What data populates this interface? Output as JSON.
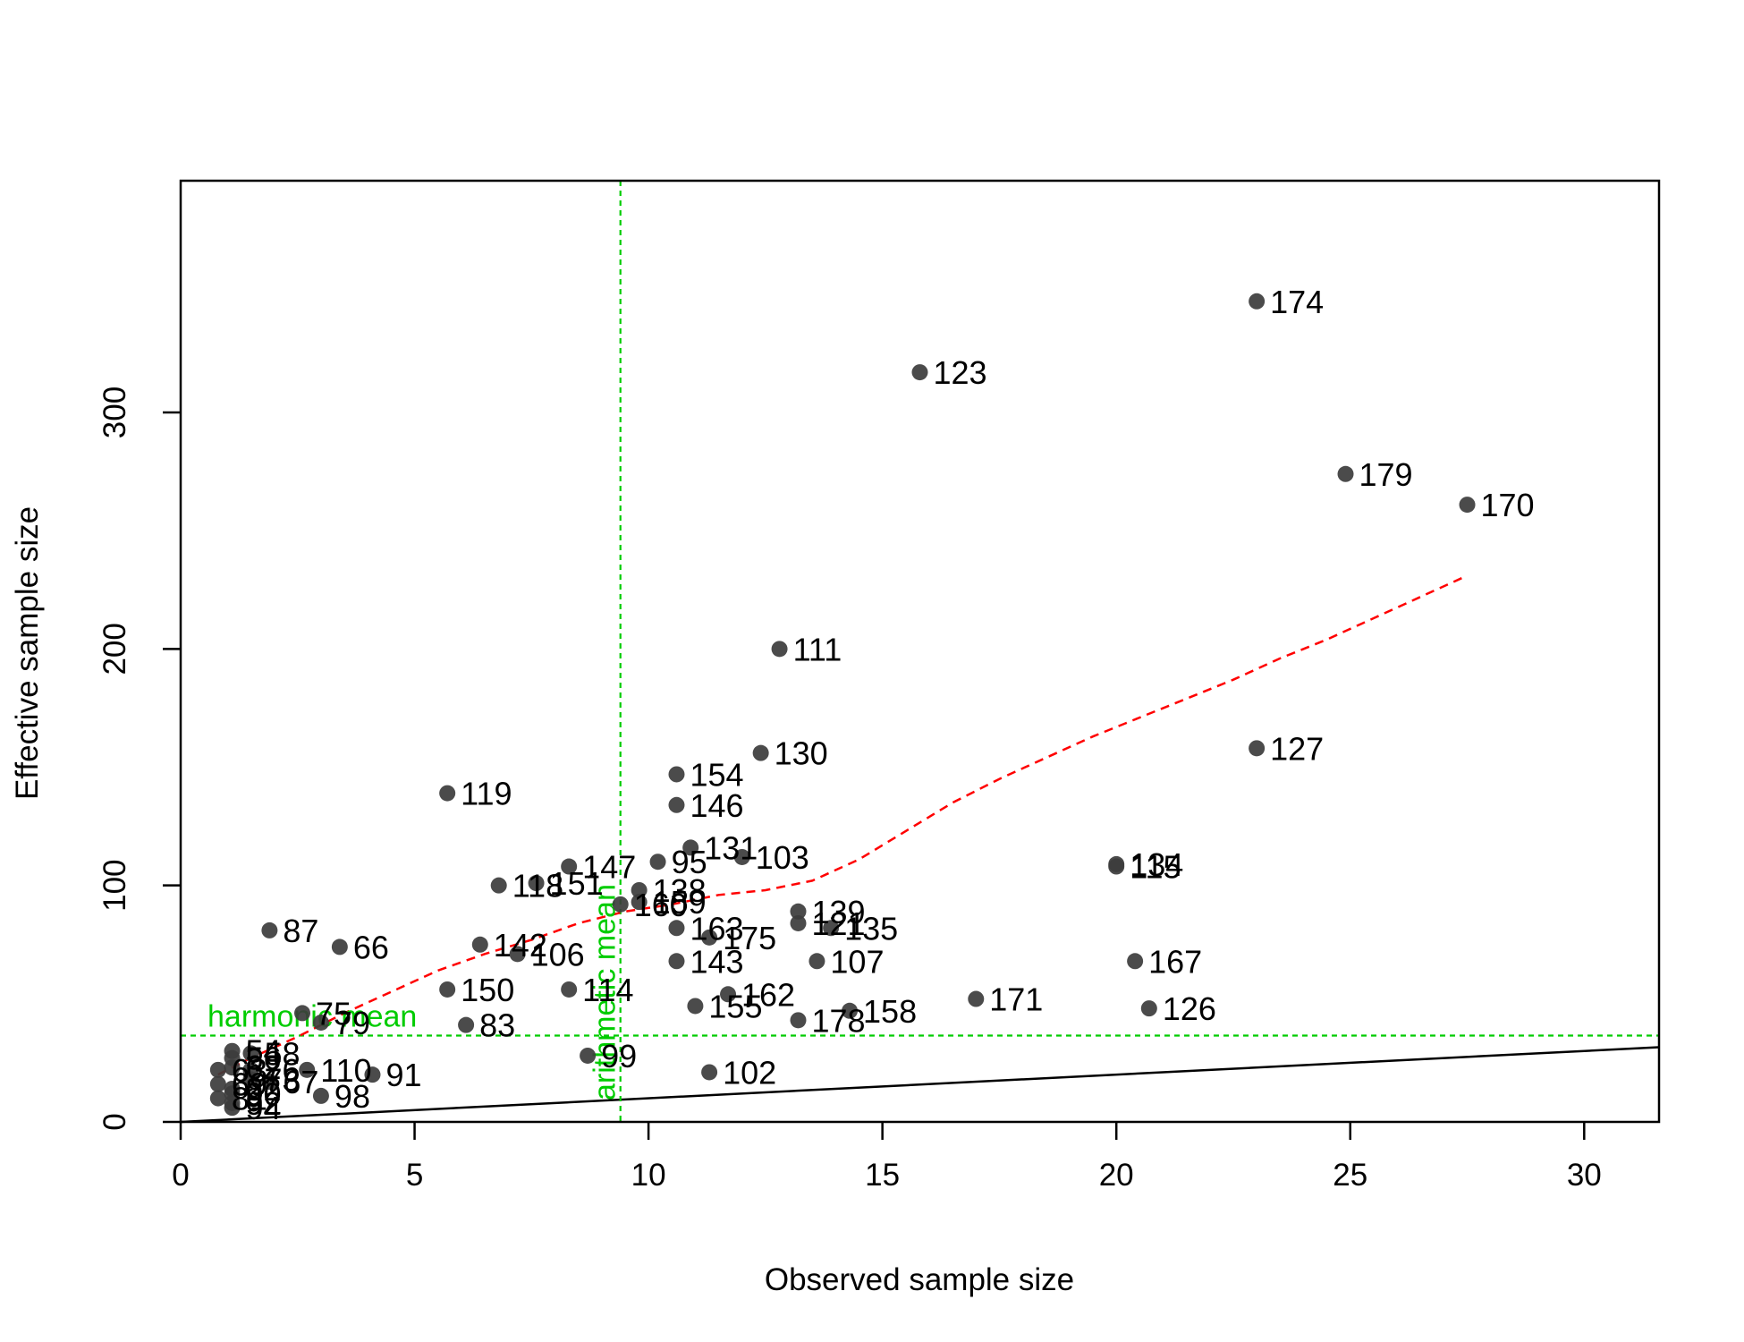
{
  "chart_data": {
    "type": "scatter",
    "title": "",
    "xlabel": "Observed sample size",
    "ylabel": "Effective sample size",
    "xlim": [
      0,
      31.6
    ],
    "ylim": [
      0,
      398
    ],
    "xticks": [
      "0",
      "5",
      "10",
      "15",
      "20",
      "25",
      "30"
    ],
    "yticks": [
      "0",
      "100",
      "200",
      "300"
    ],
    "grid": false,
    "points": [
      {
        "label": "174",
        "x": 23.0,
        "y": 347
      },
      {
        "label": "123",
        "x": 15.8,
        "y": 317
      },
      {
        "label": "179",
        "x": 24.9,
        "y": 274
      },
      {
        "label": "170",
        "x": 27.5,
        "y": 261
      },
      {
        "label": "111",
        "x": 12.8,
        "y": 200
      },
      {
        "label": "127",
        "x": 23.0,
        "y": 158
      },
      {
        "label": "130",
        "x": 12.4,
        "y": 156
      },
      {
        "label": "154",
        "x": 10.6,
        "y": 147
      },
      {
        "label": "119",
        "x": 5.7,
        "y": 139
      },
      {
        "label": "146",
        "x": 10.6,
        "y": 134
      },
      {
        "label": "131",
        "x": 10.9,
        "y": 116
      },
      {
        "label": "103",
        "x": 12.0,
        "y": 112
      },
      {
        "label": "95",
        "x": 10.2,
        "y": 110
      },
      {
        "label": "134",
        "x": 20.0,
        "y": 109
      },
      {
        "label": "115",
        "x": 20.0,
        "y": 108
      },
      {
        "label": "147",
        "x": 8.3,
        "y": 108
      },
      {
        "label": "151",
        "x": 7.6,
        "y": 101
      },
      {
        "label": "118",
        "x": 6.8,
        "y": 100
      },
      {
        "label": "138",
        "x": 9.8,
        "y": 98
      },
      {
        "label": "159",
        "x": 9.8,
        "y": 93
      },
      {
        "label": "160",
        "x": 9.4,
        "y": 92
      },
      {
        "label": "139",
        "x": 13.2,
        "y": 89
      },
      {
        "label": "121",
        "x": 13.2,
        "y": 84
      },
      {
        "label": "135",
        "x": 13.9,
        "y": 82
      },
      {
        "label": "163",
        "x": 10.6,
        "y": 82
      },
      {
        "label": "87",
        "x": 1.9,
        "y": 81
      },
      {
        "label": "175",
        "x": 11.3,
        "y": 78
      },
      {
        "label": "142",
        "x": 6.4,
        "y": 75
      },
      {
        "label": "66",
        "x": 3.4,
        "y": 74
      },
      {
        "label": "106",
        "x": 7.2,
        "y": 71
      },
      {
        "label": "143",
        "x": 10.6,
        "y": 68
      },
      {
        "label": "107",
        "x": 13.6,
        "y": 68
      },
      {
        "label": "167",
        "x": 20.4,
        "y": 68
      },
      {
        "label": "150",
        "x": 5.7,
        "y": 56
      },
      {
        "label": "114",
        "x": 8.3,
        "y": 56
      },
      {
        "label": "162",
        "x": 11.7,
        "y": 54
      },
      {
        "label": "171",
        "x": 17.0,
        "y": 52
      },
      {
        "label": "155",
        "x": 11.0,
        "y": 49
      },
      {
        "label": "126",
        "x": 20.7,
        "y": 48
      },
      {
        "label": "158",
        "x": 14.3,
        "y": 47
      },
      {
        "label": "75",
        "x": 2.6,
        "y": 46
      },
      {
        "label": "178",
        "x": 13.2,
        "y": 43
      },
      {
        "label": "79",
        "x": 3.0,
        "y": 42
      },
      {
        "label": "83",
        "x": 6.1,
        "y": 41
      },
      {
        "label": "54",
        "x": 1.1,
        "y": 30
      },
      {
        "label": "58",
        "x": 1.5,
        "y": 29
      },
      {
        "label": "99",
        "x": 8.7,
        "y": 28
      },
      {
        "label": "56",
        "x": 1.1,
        "y": 27
      },
      {
        "label": "62",
        "x": 1.1,
        "y": 23
      },
      {
        "label": "110",
        "x": 2.7,
        "y": 22
      },
      {
        "label": "63",
        "x": 0.8,
        "y": 22
      },
      {
        "label": "76",
        "x": 1.5,
        "y": 22
      },
      {
        "label": "102",
        "x": 11.3,
        "y": 21
      },
      {
        "label": "91",
        "x": 4.1,
        "y": 20
      },
      {
        "label": "73",
        "x": 1.5,
        "y": 18
      },
      {
        "label": "67",
        "x": 1.9,
        "y": 17
      },
      {
        "label": "69",
        "x": 0.8,
        "y": 16
      },
      {
        "label": "82",
        "x": 1.1,
        "y": 14
      },
      {
        "label": "90",
        "x": 1.1,
        "y": 12
      },
      {
        "label": "98",
        "x": 3.0,
        "y": 11
      },
      {
        "label": "81",
        "x": 0.8,
        "y": 10
      },
      {
        "label": "92",
        "x": 1.1,
        "y": 8
      },
      {
        "label": "94",
        "x": 1.1,
        "y": 6
      }
    ],
    "smooth_line": {
      "color": "#ff0000",
      "style": "dashed",
      "x": [
        0.8,
        1.5,
        2.5,
        3.5,
        4.5,
        5.5,
        6.5,
        7.5,
        8.5,
        9.5,
        10.5,
        11.5,
        12.5,
        13.5,
        14.5,
        15.5,
        16.5,
        17.5,
        18.5,
        19.5,
        20.5,
        21.5,
        22.5,
        23.5,
        24.5,
        25.5,
        26.5,
        27.5
      ],
      "y": [
        20,
        27,
        36,
        46,
        55,
        64,
        71,
        77,
        84,
        89,
        92,
        96,
        98,
        102,
        111,
        123,
        135,
        145,
        154,
        163,
        171,
        179,
        187,
        196,
        204,
        213,
        222,
        231
      ]
    },
    "identity_line": {
      "color": "#000000",
      "x": [
        0,
        31.6
      ],
      "y": [
        0,
        31.6
      ]
    },
    "harmonic_mean": {
      "label": "harmonic mean",
      "value": 36.5,
      "color": "#00cc00"
    },
    "arithmetic_mean": {
      "label": "arithmetic mean",
      "value": 9.4,
      "color": "#00cc00"
    },
    "point_color": "#3c3c3c"
  }
}
